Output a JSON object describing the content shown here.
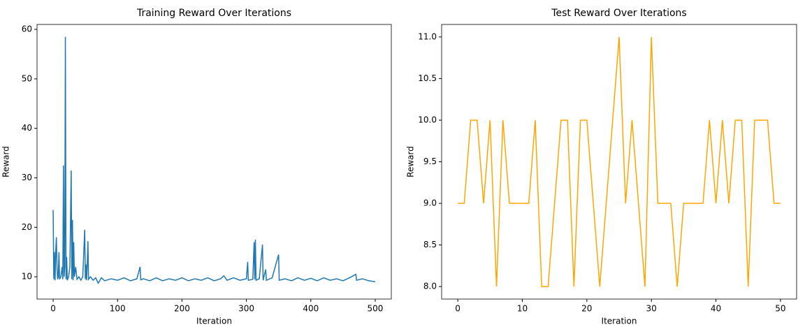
{
  "chart_data": [
    {
      "type": "line",
      "title": "Training Reward Over Iterations",
      "x_label": "Iteration",
      "y_label": "Reward",
      "xlim": [
        -25,
        525
      ],
      "ylim": [
        5.5,
        61
      ],
      "xticks": [
        0,
        100,
        200,
        300,
        400,
        500
      ],
      "yticks": [
        10,
        20,
        30,
        40,
        50,
        60
      ],
      "series": [
        {
          "color": "#1f77b4",
          "x": [
            0,
            1,
            2,
            3,
            4,
            5,
            6,
            7,
            8,
            9,
            10,
            12,
            14,
            15,
            16,
            17,
            18,
            19,
            20,
            21,
            22,
            24,
            26,
            28,
            29,
            30,
            31,
            32,
            33,
            35,
            37,
            40,
            43,
            46,
            49,
            50,
            51,
            52,
            53,
            54,
            55,
            58,
            62,
            66,
            70,
            75,
            80,
            90,
            100,
            110,
            120,
            130,
            135,
            136,
            140,
            150,
            160,
            170,
            180,
            190,
            200,
            210,
            220,
            230,
            240,
            250,
            260,
            265,
            270,
            280,
            290,
            300,
            302,
            303,
            310,
            312,
            313,
            314,
            315,
            320,
            325,
            326,
            330,
            331,
            340,
            350,
            351,
            360,
            370,
            380,
            390,
            400,
            410,
            420,
            430,
            440,
            450,
            460,
            470,
            471,
            480,
            490,
            500
          ],
          "values": [
            23.5,
            9.5,
            15,
            9.3,
            15,
            18,
            12,
            9.5,
            10,
            15,
            9.5,
            10,
            12,
            9.5,
            32.5,
            10,
            12,
            58.5,
            9.5,
            14,
            9.3,
            10,
            12,
            31.5,
            9.5,
            21.5,
            9.3,
            17,
            10,
            12,
            9.5,
            10,
            9.3,
            10,
            19.5,
            9.5,
            12.5,
            9.3,
            12.5,
            17.2,
            9.5,
            10,
            9.3,
            9.8,
            8.7,
            9.8,
            9.2,
            9.6,
            9.3,
            9.8,
            9.2,
            9.6,
            12,
            9.4,
            9.6,
            9.2,
            9.8,
            9.2,
            9.6,
            9.3,
            9.8,
            9.2,
            9.6,
            9.3,
            9.8,
            9.2,
            9.6,
            10.2,
            9.3,
            9.8,
            9.3,
            9.6,
            13,
            9.3,
            9.5,
            17,
            9.5,
            17.5,
            9.3,
            9.6,
            16.5,
            9.3,
            11.5,
            9.3,
            9.8,
            14.5,
            9.3,
            9.6,
            9.2,
            9.8,
            9.3,
            9.7,
            9.2,
            9.8,
            9.3,
            9.6,
            9.2,
            9.8,
            10.5,
            9.3,
            9.6,
            9.2,
            9.0
          ]
        }
      ]
    },
    {
      "type": "line",
      "title": "Test Reward Over Iterations",
      "x_label": "Iteration",
      "y_label": "Reward",
      "xlim": [
        -2.5,
        52.5
      ],
      "ylim": [
        7.85,
        11.15
      ],
      "xticks": [
        0,
        10,
        20,
        30,
        40,
        50
      ],
      "yticks": [
        {
          "value": 8,
          "label": "8.0"
        },
        8.5,
        {
          "value": 9,
          "label": "9.0"
        },
        9.5,
        {
          "value": 10,
          "label": "10.0"
        },
        10.5,
        {
          "value": 11,
          "label": "11.0"
        }
      ],
      "series": [
        {
          "color": "#ffa500",
          "x": [
            0,
            1,
            2,
            3,
            4,
            5,
            6,
            7,
            8,
            9,
            10,
            11,
            12,
            13,
            14,
            15,
            16,
            17,
            18,
            19,
            20,
            21,
            22,
            23,
            24,
            25,
            26,
            27,
            28,
            29,
            30,
            31,
            32,
            33,
            34,
            35,
            36,
            37,
            38,
            39,
            40,
            41,
            42,
            43,
            44,
            45,
            46,
            47,
            48,
            49,
            50
          ],
          "values": [
            9,
            9,
            10,
            10,
            9,
            10,
            8,
            10,
            9,
            9,
            9,
            9,
            10,
            8,
            8,
            9,
            10,
            10,
            8,
            10,
            10,
            9,
            8,
            9,
            10,
            11,
            9,
            10,
            9,
            8,
            11,
            9,
            9,
            9,
            8,
            9,
            9,
            9,
            9,
            10,
            9,
            10,
            9,
            10,
            10,
            8,
            10,
            10,
            10,
            9,
            9
          ]
        }
      ]
    }
  ]
}
